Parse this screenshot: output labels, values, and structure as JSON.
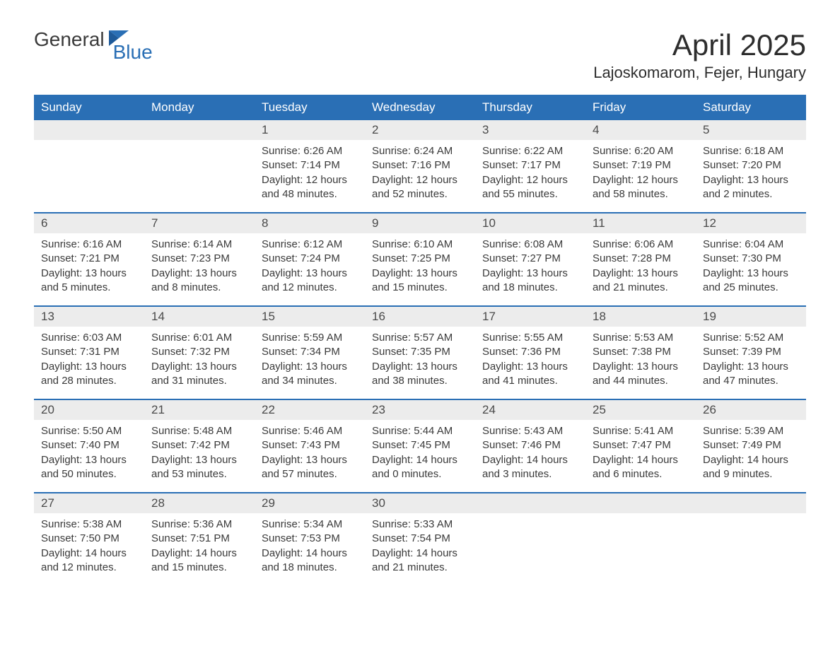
{
  "logo": {
    "text1": "General",
    "text2": "Blue"
  },
  "title": "April 2025",
  "subtitle": "Lajoskomarom, Fejer, Hungary",
  "colors": {
    "header_bg": "#2a6fb5",
    "header_text": "#ffffff",
    "daynum_bg": "#ececec",
    "border": "#2a6fb5",
    "body_text": "#3a3a3a"
  },
  "day_headers": [
    "Sunday",
    "Monday",
    "Tuesday",
    "Wednesday",
    "Thursday",
    "Friday",
    "Saturday"
  ],
  "weeks": [
    [
      {
        "num": "",
        "sunrise": "",
        "sunset": "",
        "dl1": "",
        "dl2": ""
      },
      {
        "num": "",
        "sunrise": "",
        "sunset": "",
        "dl1": "",
        "dl2": ""
      },
      {
        "num": "1",
        "sunrise": "Sunrise: 6:26 AM",
        "sunset": "Sunset: 7:14 PM",
        "dl1": "Daylight: 12 hours",
        "dl2": "and 48 minutes."
      },
      {
        "num": "2",
        "sunrise": "Sunrise: 6:24 AM",
        "sunset": "Sunset: 7:16 PM",
        "dl1": "Daylight: 12 hours",
        "dl2": "and 52 minutes."
      },
      {
        "num": "3",
        "sunrise": "Sunrise: 6:22 AM",
        "sunset": "Sunset: 7:17 PM",
        "dl1": "Daylight: 12 hours",
        "dl2": "and 55 minutes."
      },
      {
        "num": "4",
        "sunrise": "Sunrise: 6:20 AM",
        "sunset": "Sunset: 7:19 PM",
        "dl1": "Daylight: 12 hours",
        "dl2": "and 58 minutes."
      },
      {
        "num": "5",
        "sunrise": "Sunrise: 6:18 AM",
        "sunset": "Sunset: 7:20 PM",
        "dl1": "Daylight: 13 hours",
        "dl2": "and 2 minutes."
      }
    ],
    [
      {
        "num": "6",
        "sunrise": "Sunrise: 6:16 AM",
        "sunset": "Sunset: 7:21 PM",
        "dl1": "Daylight: 13 hours",
        "dl2": "and 5 minutes."
      },
      {
        "num": "7",
        "sunrise": "Sunrise: 6:14 AM",
        "sunset": "Sunset: 7:23 PM",
        "dl1": "Daylight: 13 hours",
        "dl2": "and 8 minutes."
      },
      {
        "num": "8",
        "sunrise": "Sunrise: 6:12 AM",
        "sunset": "Sunset: 7:24 PM",
        "dl1": "Daylight: 13 hours",
        "dl2": "and 12 minutes."
      },
      {
        "num": "9",
        "sunrise": "Sunrise: 6:10 AM",
        "sunset": "Sunset: 7:25 PM",
        "dl1": "Daylight: 13 hours",
        "dl2": "and 15 minutes."
      },
      {
        "num": "10",
        "sunrise": "Sunrise: 6:08 AM",
        "sunset": "Sunset: 7:27 PM",
        "dl1": "Daylight: 13 hours",
        "dl2": "and 18 minutes."
      },
      {
        "num": "11",
        "sunrise": "Sunrise: 6:06 AM",
        "sunset": "Sunset: 7:28 PM",
        "dl1": "Daylight: 13 hours",
        "dl2": "and 21 minutes."
      },
      {
        "num": "12",
        "sunrise": "Sunrise: 6:04 AM",
        "sunset": "Sunset: 7:30 PM",
        "dl1": "Daylight: 13 hours",
        "dl2": "and 25 minutes."
      }
    ],
    [
      {
        "num": "13",
        "sunrise": "Sunrise: 6:03 AM",
        "sunset": "Sunset: 7:31 PM",
        "dl1": "Daylight: 13 hours",
        "dl2": "and 28 minutes."
      },
      {
        "num": "14",
        "sunrise": "Sunrise: 6:01 AM",
        "sunset": "Sunset: 7:32 PM",
        "dl1": "Daylight: 13 hours",
        "dl2": "and 31 minutes."
      },
      {
        "num": "15",
        "sunrise": "Sunrise: 5:59 AM",
        "sunset": "Sunset: 7:34 PM",
        "dl1": "Daylight: 13 hours",
        "dl2": "and 34 minutes."
      },
      {
        "num": "16",
        "sunrise": "Sunrise: 5:57 AM",
        "sunset": "Sunset: 7:35 PM",
        "dl1": "Daylight: 13 hours",
        "dl2": "and 38 minutes."
      },
      {
        "num": "17",
        "sunrise": "Sunrise: 5:55 AM",
        "sunset": "Sunset: 7:36 PM",
        "dl1": "Daylight: 13 hours",
        "dl2": "and 41 minutes."
      },
      {
        "num": "18",
        "sunrise": "Sunrise: 5:53 AM",
        "sunset": "Sunset: 7:38 PM",
        "dl1": "Daylight: 13 hours",
        "dl2": "and 44 minutes."
      },
      {
        "num": "19",
        "sunrise": "Sunrise: 5:52 AM",
        "sunset": "Sunset: 7:39 PM",
        "dl1": "Daylight: 13 hours",
        "dl2": "and 47 minutes."
      }
    ],
    [
      {
        "num": "20",
        "sunrise": "Sunrise: 5:50 AM",
        "sunset": "Sunset: 7:40 PM",
        "dl1": "Daylight: 13 hours",
        "dl2": "and 50 minutes."
      },
      {
        "num": "21",
        "sunrise": "Sunrise: 5:48 AM",
        "sunset": "Sunset: 7:42 PM",
        "dl1": "Daylight: 13 hours",
        "dl2": "and 53 minutes."
      },
      {
        "num": "22",
        "sunrise": "Sunrise: 5:46 AM",
        "sunset": "Sunset: 7:43 PM",
        "dl1": "Daylight: 13 hours",
        "dl2": "and 57 minutes."
      },
      {
        "num": "23",
        "sunrise": "Sunrise: 5:44 AM",
        "sunset": "Sunset: 7:45 PM",
        "dl1": "Daylight: 14 hours",
        "dl2": "and 0 minutes."
      },
      {
        "num": "24",
        "sunrise": "Sunrise: 5:43 AM",
        "sunset": "Sunset: 7:46 PM",
        "dl1": "Daylight: 14 hours",
        "dl2": "and 3 minutes."
      },
      {
        "num": "25",
        "sunrise": "Sunrise: 5:41 AM",
        "sunset": "Sunset: 7:47 PM",
        "dl1": "Daylight: 14 hours",
        "dl2": "and 6 minutes."
      },
      {
        "num": "26",
        "sunrise": "Sunrise: 5:39 AM",
        "sunset": "Sunset: 7:49 PM",
        "dl1": "Daylight: 14 hours",
        "dl2": "and 9 minutes."
      }
    ],
    [
      {
        "num": "27",
        "sunrise": "Sunrise: 5:38 AM",
        "sunset": "Sunset: 7:50 PM",
        "dl1": "Daylight: 14 hours",
        "dl2": "and 12 minutes."
      },
      {
        "num": "28",
        "sunrise": "Sunrise: 5:36 AM",
        "sunset": "Sunset: 7:51 PM",
        "dl1": "Daylight: 14 hours",
        "dl2": "and 15 minutes."
      },
      {
        "num": "29",
        "sunrise": "Sunrise: 5:34 AM",
        "sunset": "Sunset: 7:53 PM",
        "dl1": "Daylight: 14 hours",
        "dl2": "and 18 minutes."
      },
      {
        "num": "30",
        "sunrise": "Sunrise: 5:33 AM",
        "sunset": "Sunset: 7:54 PM",
        "dl1": "Daylight: 14 hours",
        "dl2": "and 21 minutes."
      },
      {
        "num": "",
        "sunrise": "",
        "sunset": "",
        "dl1": "",
        "dl2": ""
      },
      {
        "num": "",
        "sunrise": "",
        "sunset": "",
        "dl1": "",
        "dl2": ""
      },
      {
        "num": "",
        "sunrise": "",
        "sunset": "",
        "dl1": "",
        "dl2": ""
      }
    ]
  ]
}
